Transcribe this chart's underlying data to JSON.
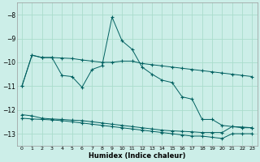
{
  "xlabel": "Humidex (Indice chaleur)",
  "bg_color": "#cceee8",
  "grid_color": "#aaddcc",
  "line_color": "#006060",
  "xlim": [
    -0.5,
    23.5
  ],
  "ylim": [
    -13.5,
    -7.5
  ],
  "yticks": [
    -13,
    -12,
    -11,
    -10,
    -9,
    -8
  ],
  "xticks": [
    0,
    1,
    2,
    3,
    4,
    5,
    6,
    7,
    8,
    9,
    10,
    11,
    12,
    13,
    14,
    15,
    16,
    17,
    18,
    19,
    20,
    21,
    22,
    23
  ],
  "line1_y": [
    -11.0,
    -9.7,
    -9.8,
    -9.8,
    -10.55,
    -10.6,
    -11.05,
    -10.3,
    -10.15,
    -8.1,
    -9.1,
    -9.45,
    -10.2,
    -10.5,
    -10.75,
    -10.85,
    -11.45,
    -11.55,
    -12.4,
    -12.4,
    -12.65,
    -12.7,
    -12.75,
    -12.75
  ],
  "line2_y": [
    -11.0,
    -9.7,
    -9.8,
    -9.8,
    -9.82,
    -9.84,
    -9.9,
    -9.95,
    -10.0,
    -10.0,
    -9.95,
    -9.95,
    -10.05,
    -10.1,
    -10.15,
    -10.2,
    -10.25,
    -10.3,
    -10.35,
    -10.4,
    -10.45,
    -10.5,
    -10.55,
    -10.6
  ],
  "line3_y": [
    -12.2,
    -12.25,
    -12.35,
    -12.38,
    -12.4,
    -12.43,
    -12.45,
    -12.5,
    -12.55,
    -12.6,
    -12.65,
    -12.7,
    -12.75,
    -12.8,
    -12.85,
    -12.88,
    -12.9,
    -12.92,
    -12.95,
    -12.95,
    -12.95,
    -12.7,
    -12.72,
    -12.75
  ],
  "line4_y": [
    -12.35,
    -12.38,
    -12.4,
    -12.42,
    -12.45,
    -12.5,
    -12.55,
    -12.6,
    -12.65,
    -12.7,
    -12.75,
    -12.8,
    -12.85,
    -12.9,
    -12.95,
    -13.0,
    -13.05,
    -13.1,
    -13.1,
    -13.15,
    -13.2,
    -13.0,
    -13.0,
    -13.0
  ]
}
